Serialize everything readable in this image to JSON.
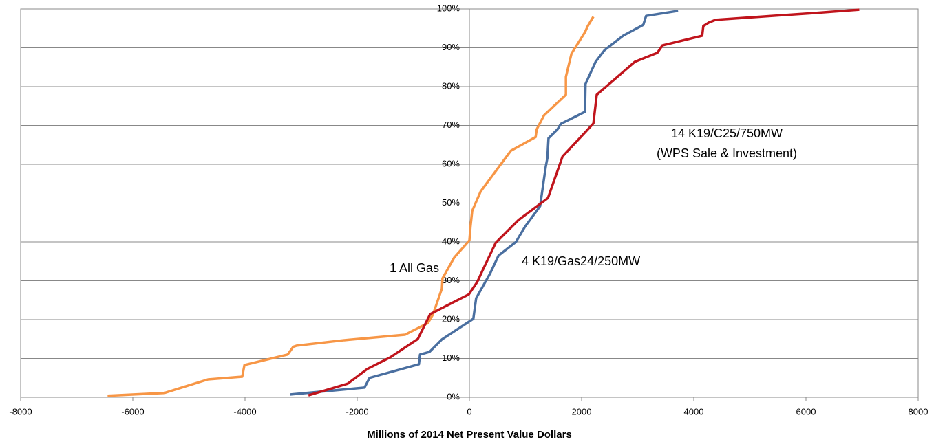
{
  "chart_data": {
    "type": "line",
    "xlabel": "Millions of 2014 Net Present Value Dollars",
    "xlim": [
      -8000,
      8000
    ],
    "xticks": [
      -8000,
      -6000,
      -4000,
      -2000,
      0,
      2000,
      4000,
      6000,
      8000
    ],
    "ylim": [
      0,
      100
    ],
    "yticks": [
      {
        "value": 0,
        "label": "0%"
      },
      {
        "value": 10,
        "label": "10%"
      },
      {
        "value": 20,
        "label": "20%"
      },
      {
        "value": 30,
        "label": "30%"
      },
      {
        "value": 40,
        "label": "40%"
      },
      {
        "value": 50,
        "label": "50%"
      },
      {
        "value": 60,
        "label": "60%"
      },
      {
        "value": 70,
        "label": "70%"
      },
      {
        "value": 80,
        "label": "80%"
      },
      {
        "value": 90,
        "label": "90%"
      },
      {
        "value": 100,
        "label": "100%"
      }
    ],
    "grid": true,
    "series": [
      {
        "name": "1  All Gas",
        "color": "#f79646",
        "x": [
          -6450,
          -5440,
          -4660,
          -4050,
          -4010,
          -3240,
          -3140,
          -3080,
          -2230,
          -1150,
          -740,
          -650,
          -490,
          -480,
          -270,
          0,
          20,
          50,
          200,
          740,
          1180,
          1200,
          1330,
          1720,
          1720,
          1820,
          2060,
          2110,
          2210
        ],
        "values": [
          0.4,
          1.1,
          4.6,
          5.3,
          8.3,
          11.0,
          13.0,
          13.3,
          14.7,
          16.1,
          19.1,
          21.3,
          28.0,
          30.6,
          36.0,
          40.4,
          44.0,
          48.0,
          53.0,
          63.5,
          67.0,
          69.0,
          72.6,
          77.9,
          82.5,
          88.5,
          94.0,
          95.6,
          98.0
        ]
      },
      {
        "name": "4  K19/Gas24/250MW",
        "color": "#4a6fa0",
        "x": [
          -3200,
          -1870,
          -1780,
          -900,
          -880,
          -710,
          -490,
          70,
          120,
          370,
          520,
          830,
          990,
          1260,
          1360,
          1390,
          1410,
          1570,
          1630,
          2060,
          2070,
          2250,
          2410,
          2740,
          3100,
          3150,
          3720
        ],
        "values": [
          0.7,
          2.5,
          5.0,
          8.5,
          11.0,
          11.7,
          14.9,
          20.2,
          25.5,
          31.9,
          36.5,
          40.0,
          43.9,
          49.2,
          59.3,
          61.6,
          66.7,
          69.0,
          70.4,
          73.5,
          80.7,
          86.4,
          89.4,
          93.1,
          95.9,
          98.2,
          99.5
        ]
      },
      {
        "name": "14  K19/C25/750MW",
        "color": "#c0141c",
        "x": [
          -2870,
          -2170,
          -1820,
          -1410,
          -920,
          -700,
          -390,
          -10,
          140,
          220,
          470,
          880,
          1400,
          1660,
          2210,
          2270,
          2550,
          2950,
          3350,
          3440,
          4150,
          4170,
          4270,
          4390,
          6110,
          6950
        ],
        "values": [
          0.5,
          3.5,
          7.3,
          10.3,
          15.0,
          21.4,
          23.7,
          26.5,
          29.7,
          32.2,
          39.8,
          45.7,
          51.3,
          62.0,
          70.5,
          77.9,
          81.4,
          86.4,
          88.7,
          90.6,
          93.1,
          95.6,
          96.5,
          97.2,
          98.9,
          99.8
        ]
      }
    ],
    "annotations": [
      "(WPS Sale & Investment)"
    ]
  }
}
